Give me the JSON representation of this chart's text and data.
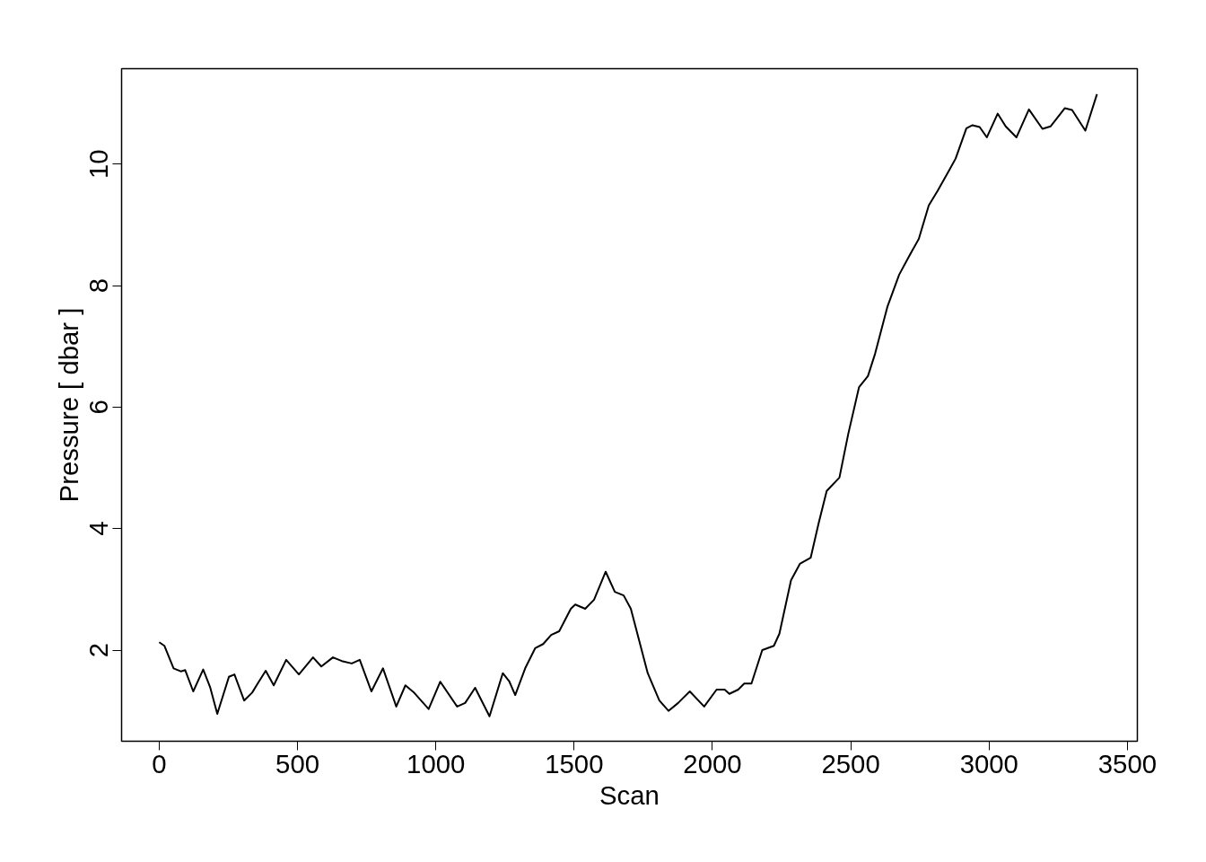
{
  "chart_data": {
    "type": "line",
    "xlabel": "Scan",
    "ylabel": "Pressure [ dbar ]",
    "xlim": [
      -136,
      3536
    ],
    "ylim": [
      0.5,
      11.57
    ],
    "xticks": [
      0,
      500,
      1000,
      1500,
      2000,
      2500,
      3000,
      3500
    ],
    "yticks": [
      2,
      4,
      6,
      8,
      10
    ],
    "grid": false,
    "line_style": "solid",
    "series": [
      {
        "color": "#000000",
        "x": [
          0,
          19,
          52,
          78,
          94,
          123,
          159,
          184,
          210,
          252,
          272,
          307,
          336,
          356,
          385,
          414,
          459,
          505,
          556,
          586,
          628,
          660,
          696,
          725,
          767,
          809,
          857,
          890,
          919,
          974,
          1016,
          1077,
          1106,
          1142,
          1194,
          1242,
          1265,
          1287,
          1323,
          1359,
          1388,
          1417,
          1446,
          1488,
          1504,
          1540,
          1572,
          1614,
          1647,
          1679,
          1705,
          1766,
          1808,
          1841,
          1876,
          1918,
          1970,
          2015,
          2044,
          2061,
          2093,
          2115,
          2141,
          2180,
          2222,
          2242,
          2284,
          2316,
          2355,
          2384,
          2413,
          2459,
          2491,
          2530,
          2562,
          2588,
          2633,
          2675,
          2708,
          2746,
          2782,
          2814,
          2856,
          2879,
          2918,
          2940,
          2966,
          2992,
          3031,
          3060,
          3099,
          3144,
          3193,
          3222,
          3274,
          3300,
          3348,
          3390
        ],
        "values": [
          2.13,
          2.07,
          1.7,
          1.65,
          1.67,
          1.32,
          1.68,
          1.39,
          0.95,
          1.56,
          1.6,
          1.17,
          1.3,
          1.45,
          1.66,
          1.42,
          1.84,
          1.6,
          1.88,
          1.73,
          1.88,
          1.82,
          1.78,
          1.84,
          1.32,
          1.7,
          1.07,
          1.42,
          1.31,
          1.03,
          1.48,
          1.07,
          1.13,
          1.38,
          0.91,
          1.62,
          1.49,
          1.26,
          1.7,
          2.03,
          2.1,
          2.25,
          2.31,
          2.68,
          2.75,
          2.68,
          2.83,
          3.29,
          2.96,
          2.9,
          2.68,
          1.62,
          1.17,
          1.0,
          1.13,
          1.32,
          1.07,
          1.35,
          1.35,
          1.28,
          1.35,
          1.45,
          1.45,
          2.0,
          2.07,
          2.27,
          3.15,
          3.42,
          3.52,
          4.09,
          4.62,
          4.84,
          5.56,
          6.33,
          6.51,
          6.88,
          7.66,
          8.18,
          8.46,
          8.77,
          9.32,
          9.56,
          9.9,
          10.09,
          10.59,
          10.64,
          10.61,
          10.44,
          10.83,
          10.62,
          10.44,
          10.9,
          10.58,
          10.62,
          10.92,
          10.89,
          10.55,
          11.15
        ]
      }
    ]
  }
}
